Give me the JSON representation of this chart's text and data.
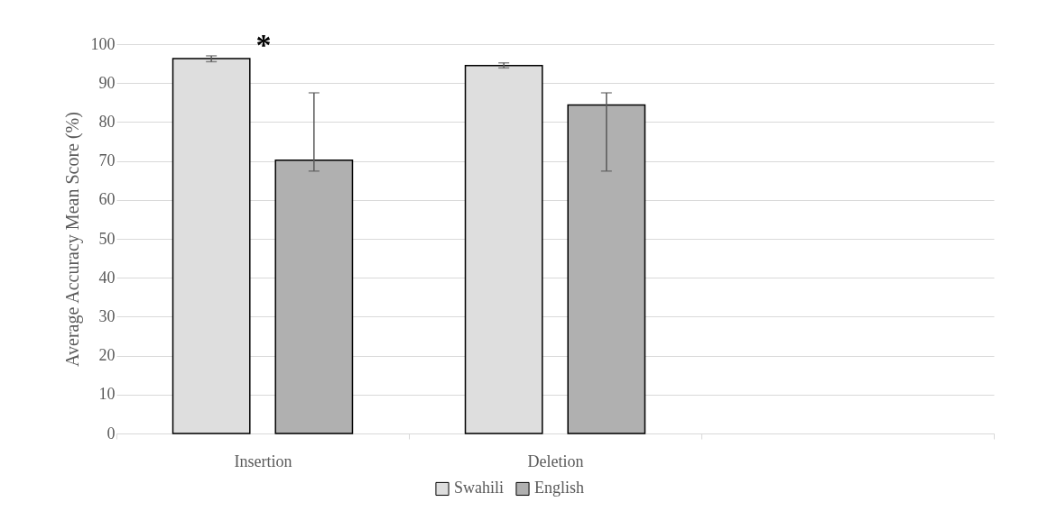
{
  "chart_data": {
    "type": "bar",
    "ylabel": "Average Accuracy Mean Score  (%)",
    "categories": [
      "Insertion",
      "Deletion",
      null
    ],
    "series": [
      {
        "name": "Swahili",
        "color": "#dedede",
        "values": [
          96.3,
          94.5,
          null
        ],
        "errors": [
          [
            95.5,
            97.0
          ],
          [
            93.9,
            95.2
          ],
          null
        ]
      },
      {
        "name": "English",
        "color": "#b0b0b0",
        "values": [
          70.2,
          84.4,
          null
        ],
        "errors": [
          [
            67.4,
            87.5
          ],
          [
            67.4,
            87.5
          ],
          null
        ]
      }
    ],
    "ylim": [
      0,
      100
    ],
    "yticks": [
      0,
      10,
      20,
      30,
      40,
      50,
      60,
      70,
      80,
      90,
      100
    ],
    "grid": "y",
    "legend": "bottom",
    "annotations": [
      "*"
    ]
  }
}
